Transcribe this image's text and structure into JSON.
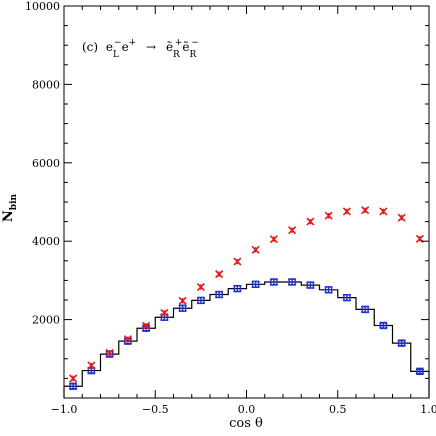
{
  "chart_data": {
    "type": "scatter",
    "annotation": {
      "panel": "(c)",
      "beam": "e",
      "beam_sub": "L",
      "beam_sup": "−",
      "beam2": "e",
      "beam2_sup": "+",
      "arrow": "→",
      "prod1": "ẽ",
      "prod1_sub": "R",
      "prod1_sup": "+",
      "prod2": "ẽ",
      "prod2_sub": "R",
      "prod2_sup": "−"
    },
    "xlabel": "cos θ",
    "ylabel": "N",
    "ylabel_sub": "bin",
    "xlim": [
      -1.0,
      1.0
    ],
    "ylim": [
      0,
      10000
    ],
    "xticks": [
      -1.0,
      -0.5,
      0.0,
      0.5,
      1.0
    ],
    "xtick_labels": [
      "−1.0",
      "−0.5",
      "0.0",
      "0.5",
      "1.0"
    ],
    "yticks": [
      2000,
      4000,
      6000,
      8000,
      10000
    ],
    "ytick_labels": [
      "2000",
      "4000",
      "6000",
      "8000",
      "10000"
    ],
    "x": [
      -0.95,
      -0.85,
      -0.75,
      -0.65,
      -0.55,
      -0.45,
      -0.35,
      -0.25,
      -0.15,
      -0.05,
      0.05,
      0.15,
      0.25,
      0.35,
      0.45,
      0.55,
      0.65,
      0.75,
      0.85,
      0.95
    ],
    "series": [
      {
        "style": "histogram",
        "color": "#000000",
        "values": [
          300,
          700,
          1120,
          1450,
          1780,
          2060,
          2290,
          2490,
          2640,
          2790,
          2900,
          2960,
          2960,
          2880,
          2760,
          2560,
          2260,
          1850,
          1400,
          680
        ]
      },
      {
        "style": "square-markers",
        "color": "#1f2fd6",
        "values": [
          300,
          700,
          1120,
          1450,
          1780,
          2060,
          2290,
          2490,
          2640,
          2790,
          2900,
          2960,
          2960,
          2880,
          2760,
          2560,
          2260,
          1850,
          1400,
          680
        ],
        "errors": [
          60,
          60,
          60,
          60,
          60,
          70,
          70,
          70,
          70,
          70,
          70,
          70,
          70,
          70,
          70,
          70,
          70,
          60,
          60,
          50
        ]
      },
      {
        "style": "x-markers",
        "color": "#e01a1a",
        "values": [
          500,
          830,
          1150,
          1500,
          1840,
          2170,
          2480,
          2830,
          3160,
          3480,
          3780,
          4050,
          4280,
          4500,
          4650,
          4760,
          4790,
          4760,
          4600,
          4060
        ],
        "errors": [
          70,
          70,
          70,
          70,
          70,
          70,
          70,
          70,
          70,
          70,
          70,
          70,
          70,
          70,
          70,
          70,
          70,
          70,
          70,
          70
        ]
      }
    ]
  }
}
